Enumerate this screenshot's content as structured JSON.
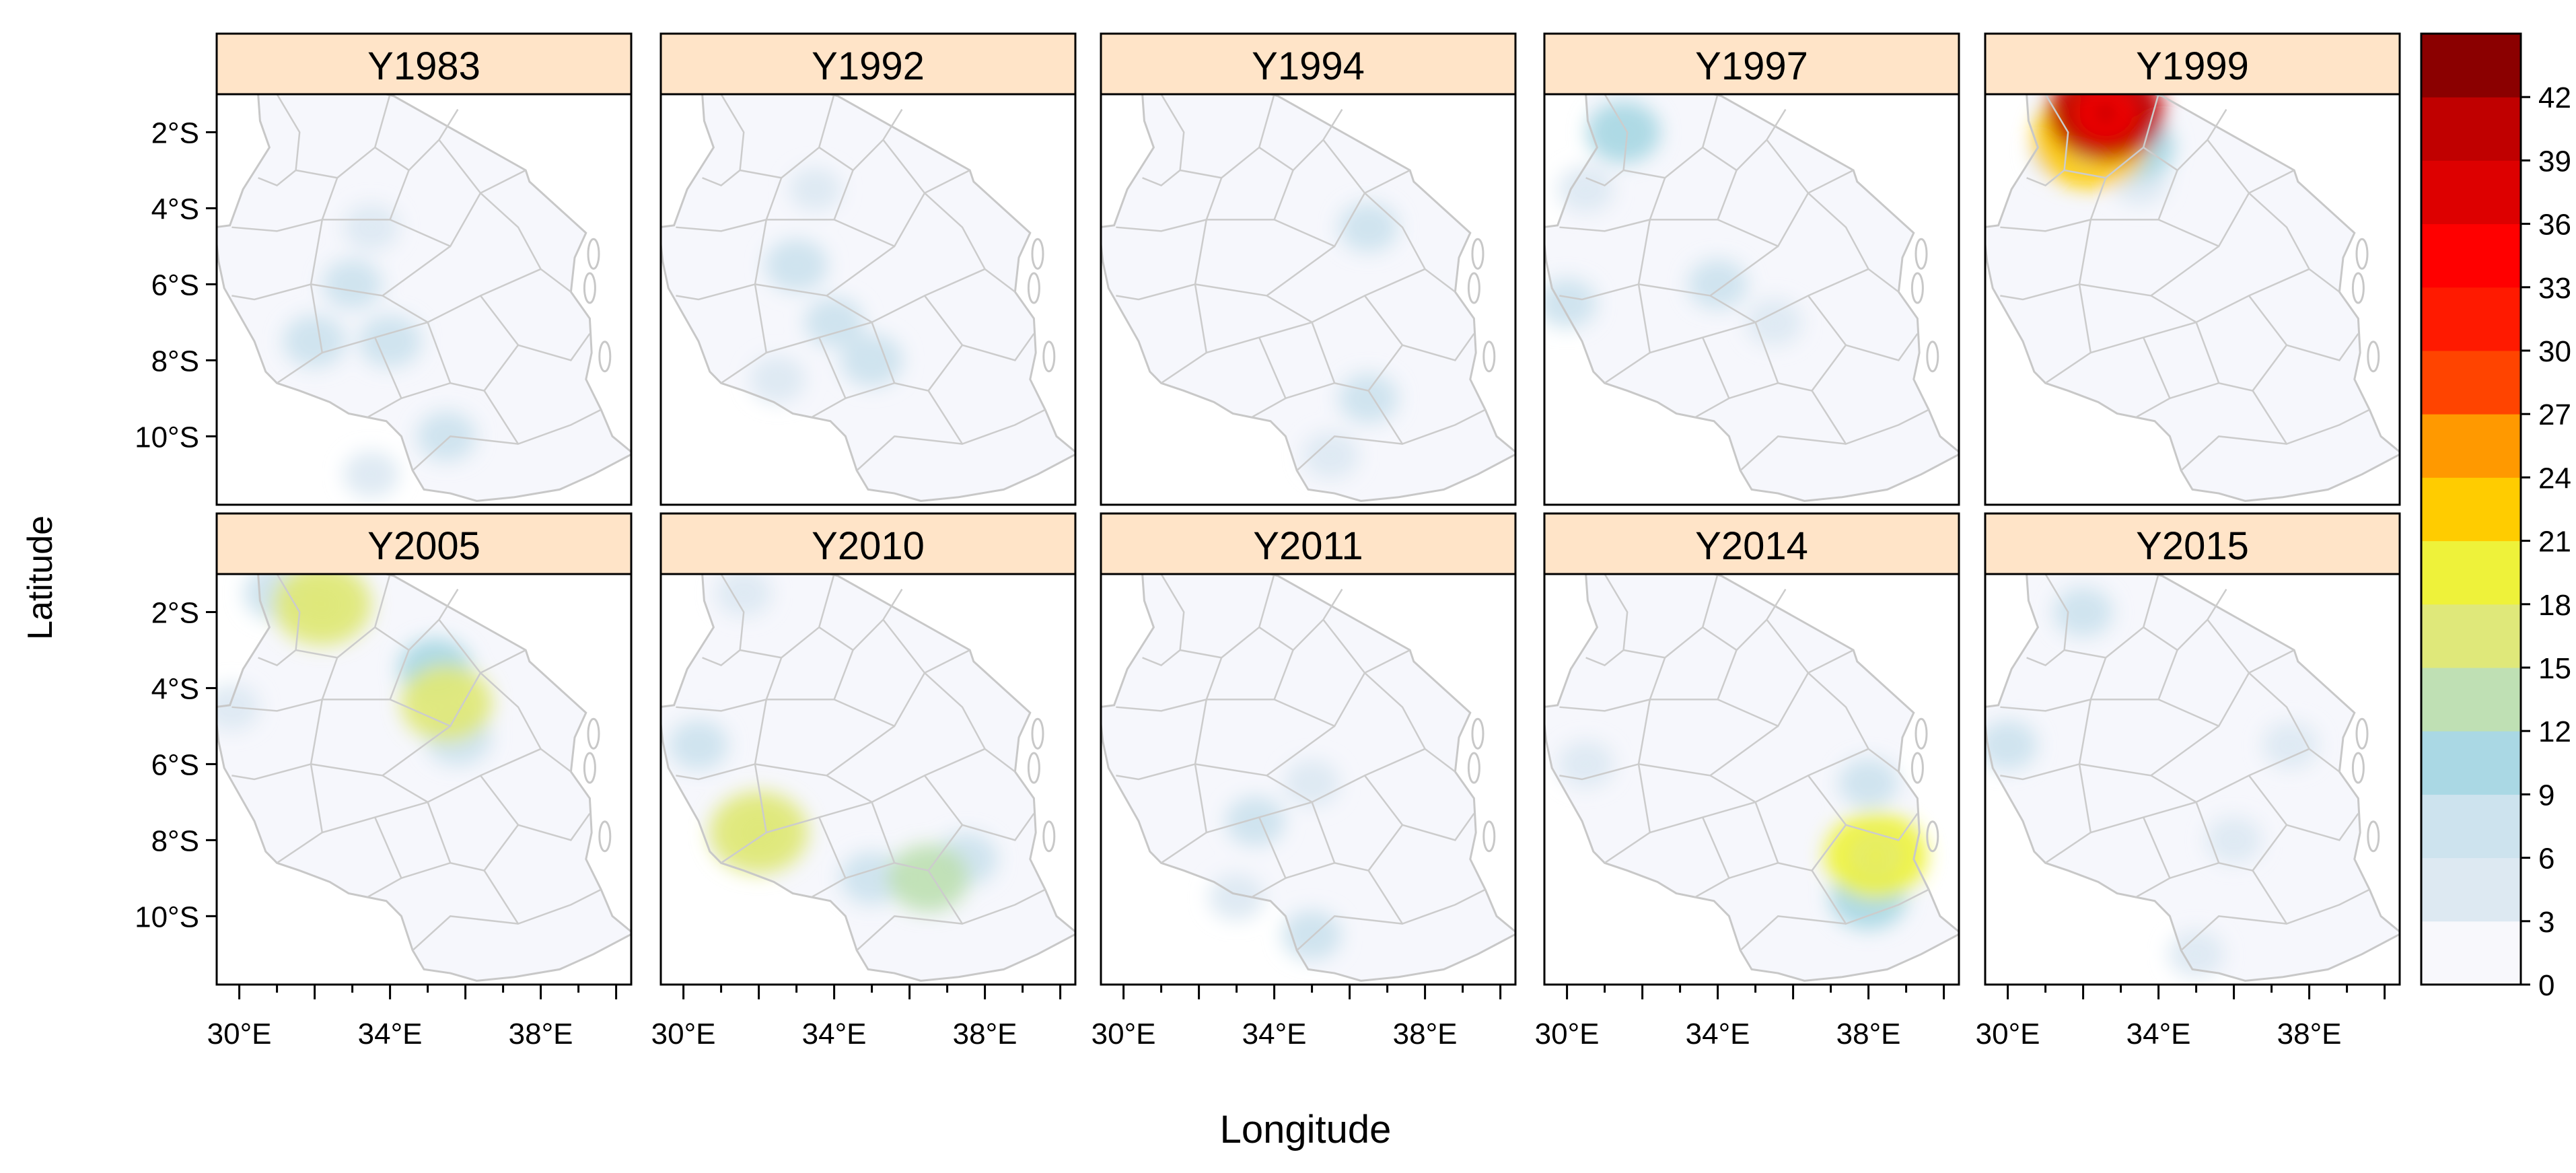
{
  "chart_data": {
    "type": "heatmap",
    "title": "",
    "xlabel": "Longitude",
    "ylabel": "Latitude",
    "panels": [
      "Y1983",
      "Y1992",
      "Y1994",
      "Y1997",
      "Y1999",
      "Y2005",
      "Y2010",
      "Y2011",
      "Y2014",
      "Y2015"
    ],
    "layout": {
      "rows": 2,
      "cols": 5
    },
    "x_ticks": [
      "30°E",
      "34°E",
      "38°E"
    ],
    "x_tick_values": [
      30,
      34,
      38
    ],
    "y_ticks": [
      "2°S",
      "4°S",
      "6°S",
      "8°S",
      "10°S"
    ],
    "y_tick_values": [
      -2,
      -4,
      -6,
      -8,
      -10
    ],
    "xlim": [
      29.4,
      40.4
    ],
    "ylim": [
      -11.8,
      -1.0
    ],
    "colorbar": {
      "ticks": [
        "0",
        "3",
        "6",
        "9",
        "12",
        "15",
        "18",
        "21",
        "24",
        "27",
        "30",
        "33",
        "36",
        "39",
        "42"
      ],
      "colors": [
        "#f8f8fc",
        "#dde9f2",
        "#cde3ee",
        "#aad8e4",
        "#bfe0b4",
        "#dfe87a",
        "#eef23a",
        "#ffcc00",
        "#ff9900",
        "#ff4400",
        "#ff1a00",
        "#ff0000",
        "#dd0000",
        "#c00000",
        "#8b0000"
      ]
    },
    "hotspots": [
      {
        "panel": "Y1983",
        "cells": [
          [
            33.5,
            -4.5,
            3
          ],
          [
            33.0,
            -6.0,
            4
          ],
          [
            32.0,
            -7.5,
            5
          ],
          [
            34.0,
            -7.5,
            5
          ],
          [
            35.5,
            -10.0,
            4
          ],
          [
            33.5,
            -11.0,
            3
          ]
        ]
      },
      {
        "panel": "Y1992",
        "cells": [
          [
            33.5,
            -3.5,
            2
          ],
          [
            33.0,
            -5.5,
            5
          ],
          [
            34.0,
            -7.0,
            4
          ],
          [
            35.0,
            -8.0,
            5
          ],
          [
            32.5,
            -8.5,
            3
          ]
        ]
      },
      {
        "panel": "Y1994",
        "cells": [
          [
            36.5,
            -4.5,
            4
          ],
          [
            36.5,
            -9.0,
            4
          ],
          [
            35.5,
            -10.5,
            3
          ]
        ]
      },
      {
        "panel": "Y1997",
        "cells": [
          [
            31.5,
            -2.0,
            8
          ],
          [
            30.5,
            -3.5,
            3
          ],
          [
            34.0,
            -6.0,
            4
          ],
          [
            35.5,
            -7.0,
            3
          ],
          [
            30.0,
            -6.5,
            4
          ]
        ]
      },
      {
        "panel": "Y1999",
        "cells": [
          [
            32.6,
            -1.5,
            39
          ],
          [
            32.2,
            -2.2,
            21
          ],
          [
            33.4,
            -2.4,
            9
          ],
          [
            31.5,
            -2.5,
            6
          ],
          [
            33.5,
            -3.3,
            3
          ]
        ]
      },
      {
        "panel": "Y2005",
        "cells": [
          [
            32.2,
            -1.8,
            15
          ],
          [
            31.0,
            -1.5,
            6
          ],
          [
            35.5,
            -4.4,
            13
          ],
          [
            35.2,
            -3.5,
            8
          ],
          [
            35.8,
            -5.3,
            6
          ],
          [
            29.8,
            -4.5,
            3
          ]
        ]
      },
      {
        "panel": "Y2010",
        "cells": [
          [
            32.0,
            -7.8,
            15
          ],
          [
            36.5,
            -9.0,
            10
          ],
          [
            35.0,
            -9.0,
            5
          ],
          [
            37.5,
            -8.5,
            5
          ],
          [
            30.4,
            -5.5,
            4
          ],
          [
            31.6,
            -1.5,
            3
          ]
        ]
      },
      {
        "panel": "Y2011",
        "cells": [
          [
            33.5,
            -7.5,
            4
          ],
          [
            35.0,
            -6.5,
            3
          ],
          [
            35.0,
            -10.5,
            4
          ],
          [
            33.0,
            -9.5,
            3
          ]
        ]
      },
      {
        "panel": "Y2014",
        "cells": [
          [
            38.2,
            -8.4,
            16
          ],
          [
            38.0,
            -9.5,
            9
          ],
          [
            38.0,
            -6.5,
            4
          ],
          [
            30.5,
            -6.0,
            3
          ]
        ]
      },
      {
        "panel": "Y2015",
        "cells": [
          [
            32.0,
            -2.0,
            4
          ],
          [
            36.0,
            -8.0,
            3
          ],
          [
            35.0,
            -11.0,
            3
          ],
          [
            30.0,
            -5.5,
            4
          ],
          [
            37.5,
            -5.5,
            3
          ]
        ]
      }
    ]
  }
}
